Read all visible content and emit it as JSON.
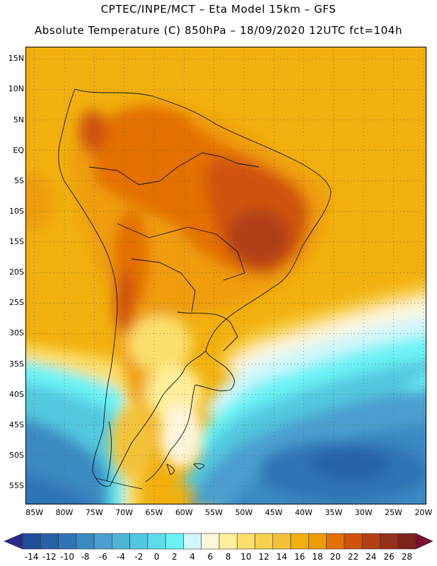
{
  "header": {
    "line1": "CPTEC/INPE/MCT –  Eta Model 15km – GFS",
    "line2": "Absolute Temperature (C) 850hPa – 18/09/2020 12UTC fct=104h"
  },
  "map": {
    "lat_ticks": [
      {
        "label": "15N",
        "value": 15
      },
      {
        "label": "10N",
        "value": 10
      },
      {
        "label": "5N",
        "value": 5
      },
      {
        "label": "EQ",
        "value": 0
      },
      {
        "label": "5S",
        "value": -5
      },
      {
        "label": "10S",
        "value": -10
      },
      {
        "label": "15S",
        "value": -15
      },
      {
        "label": "20S",
        "value": -20
      },
      {
        "label": "25S",
        "value": -25
      },
      {
        "label": "30S",
        "value": -30
      },
      {
        "label": "35S",
        "value": -35
      },
      {
        "label": "40S",
        "value": -40
      },
      {
        "label": "45S",
        "value": -45
      },
      {
        "label": "50S",
        "value": -50
      },
      {
        "label": "55S",
        "value": -55
      }
    ],
    "lon_ticks": [
      {
        "label": "85W",
        "value": -85
      },
      {
        "label": "80W",
        "value": -80
      },
      {
        "label": "75W",
        "value": -75
      },
      {
        "label": "70W",
        "value": -70
      },
      {
        "label": "65W",
        "value": -65
      },
      {
        "label": "60W",
        "value": -60
      },
      {
        "label": "55W",
        "value": -55
      },
      {
        "label": "50W",
        "value": -50
      },
      {
        "label": "45W",
        "value": -45
      },
      {
        "label": "40W",
        "value": -40
      },
      {
        "label": "35W",
        "value": -35
      },
      {
        "label": "30W",
        "value": -30
      },
      {
        "label": "25W",
        "value": -25
      },
      {
        "label": "20W",
        "value": -20
      }
    ],
    "lat_range": [
      -58,
      17
    ],
    "lon_range": [
      -86.5,
      -19.5
    ],
    "grid": true,
    "grid_style": "dotted"
  },
  "colorbar": {
    "labels": [
      "-14",
      "-12",
      "-10",
      "-8",
      "-6",
      "-4",
      "-2",
      "0",
      "2",
      "4",
      "6",
      "8",
      "10",
      "12",
      "14",
      "16",
      "18",
      "20",
      "22",
      "24",
      "26",
      "28"
    ],
    "colors": [
      "#1f4e9a",
      "#2762a8",
      "#2f75b5",
      "#3a8ac2",
      "#4c9fcf",
      "#4db4d7",
      "#52c8df",
      "#5ddcea",
      "#6cf2f6",
      "#d0f6fb",
      "#fff6dc",
      "#ffee9a",
      "#fcdf6c",
      "#f8d14b",
      "#f3c23a",
      "#f1b00e",
      "#ef9c07",
      "#e46f06",
      "#d0530a",
      "#b24012",
      "#96301a",
      "#7c231c"
    ],
    "under_color": "#2a2a8a",
    "over_color": "#7a0e2e"
  }
}
